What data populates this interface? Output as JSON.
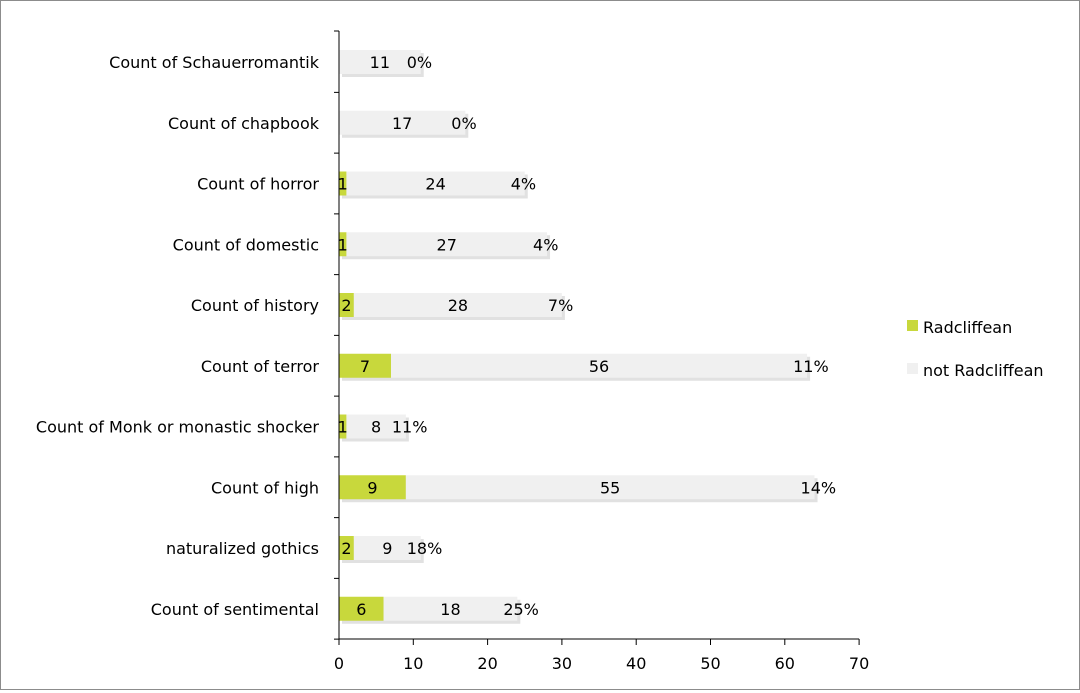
{
  "chart_data": {
    "type": "bar",
    "stacked": true,
    "orientation": "horizontal",
    "categories": [
      "Count of Schauerromantik",
      "Count of chapbook",
      "Count of horror",
      "Count of domestic",
      "Count of history",
      "Count of terror",
      "Count of Monk or monastic shocker",
      "Count of high",
      "naturalized gothics",
      "Count of sentimental"
    ],
    "series": [
      {
        "name": "Radcliffean",
        "color": "#c8d83c",
        "values": [
          0,
          0,
          1,
          1,
          2,
          7,
          1,
          9,
          2,
          6
        ]
      },
      {
        "name": "not Radcliffean",
        "color": "#f0f0f0",
        "values": [
          11,
          17,
          24,
          27,
          28,
          56,
          8,
          55,
          9,
          18
        ]
      }
    ],
    "percent_labels": [
      "0%",
      "0%",
      "4%",
      "4%",
      "7%",
      "11%",
      "11%",
      "14%",
      "18%",
      "25%"
    ],
    "xlim": [
      0,
      70
    ],
    "xticks": [
      "0",
      "10",
      "20",
      "30",
      "40",
      "50",
      "60",
      "70"
    ],
    "legend": {
      "placement": "right"
    },
    "grid": false
  }
}
